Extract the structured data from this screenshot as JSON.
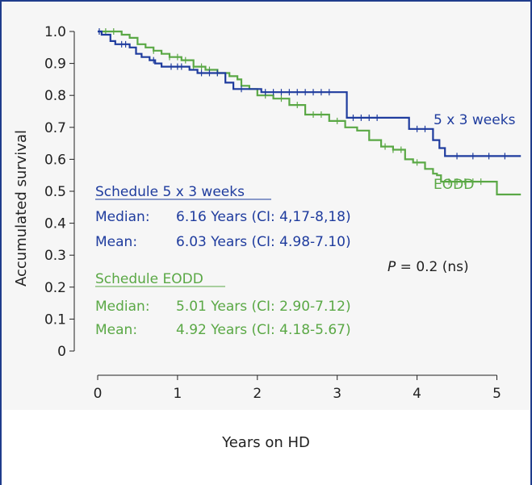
{
  "chart_data": {
    "type": "line",
    "subtype": "kaplan-meier",
    "xlabel": "Years on HD",
    "ylabel": "Accumulated survival",
    "xlim": [
      0,
      5.3
    ],
    "ylim": [
      0,
      1.0
    ],
    "xticks": [
      "0",
      "1",
      "2",
      "3",
      "4",
      "5"
    ],
    "yticks": [
      "0",
      "0.1",
      "0.2",
      "0.3",
      "0.4",
      "0.5",
      "0.6",
      "0.7",
      "0.8",
      "0.9",
      "1.0"
    ],
    "grid": false,
    "series": [
      {
        "name": "5 x 3 weeks",
        "color": "#1f3c9e",
        "x": [
          0,
          0.05,
          0.16,
          0.22,
          0.3,
          0.4,
          0.48,
          0.55,
          0.65,
          0.72,
          0.8,
          0.88,
          1.15,
          1.25,
          1.6,
          1.7,
          1.95,
          2.05,
          3.05,
          3.12,
          3.9,
          4.2,
          4.28,
          4.35,
          5.3
        ],
        "y": [
          1.0,
          0.99,
          0.97,
          0.96,
          0.96,
          0.95,
          0.93,
          0.92,
          0.91,
          0.9,
          0.89,
          0.89,
          0.88,
          0.87,
          0.84,
          0.82,
          0.82,
          0.81,
          0.81,
          0.73,
          0.695,
          0.66,
          0.635,
          0.61,
          0.61
        ],
        "censor_x": [
          0.02,
          0.3,
          0.35,
          0.7,
          0.92,
          1.0,
          1.05,
          1.3,
          1.4,
          1.5,
          1.8,
          2.1,
          2.2,
          2.3,
          2.4,
          2.5,
          2.6,
          2.7,
          2.8,
          2.9,
          3.2,
          3.3,
          3.4,
          3.5,
          4.0,
          4.1,
          4.5,
          4.7,
          4.9,
          5.1
        ]
      },
      {
        "name": "EODD",
        "color": "#5aa845",
        "x": [
          0,
          0.3,
          0.4,
          0.5,
          0.6,
          0.7,
          0.8,
          0.9,
          1.05,
          1.2,
          1.35,
          1.5,
          1.65,
          1.75,
          1.8,
          1.9,
          2.0,
          2.2,
          2.4,
          2.6,
          2.9,
          3.1,
          3.25,
          3.4,
          3.55,
          3.7,
          3.85,
          3.95,
          4.1,
          4.2,
          4.25,
          4.3,
          5.0,
          5.3
        ],
        "y": [
          1.0,
          0.99,
          0.98,
          0.96,
          0.95,
          0.94,
          0.93,
          0.92,
          0.91,
          0.89,
          0.88,
          0.87,
          0.86,
          0.85,
          0.83,
          0.82,
          0.8,
          0.79,
          0.77,
          0.74,
          0.72,
          0.7,
          0.69,
          0.66,
          0.64,
          0.63,
          0.6,
          0.59,
          0.57,
          0.555,
          0.55,
          0.53,
          0.49,
          0.49
        ],
        "censor_x": [
          0.1,
          0.2,
          0.7,
          0.9,
          1.0,
          1.1,
          1.2,
          1.3,
          1.4,
          1.5,
          2.1,
          2.3,
          2.5,
          2.7,
          2.8,
          3.0,
          3.6,
          3.7,
          3.8,
          4.0,
          4.4,
          4.5,
          4.6,
          4.7,
          4.8
        ]
      }
    ],
    "series_labels": [
      "5 x 3 weeks",
      "EODD"
    ],
    "annotations": {
      "blue_heading": "Schedule 5 x 3 weeks",
      "blue_median_label": "Median:",
      "blue_median_value": "6.16 Years (CI: 4,17-8,18)",
      "blue_mean_label": "Mean:",
      "blue_mean_value": "6.03 Years (CI: 4.98-7.10)",
      "green_heading": "Schedule EODD",
      "green_median_label": "Median:",
      "green_median_value": "5.01 Years (CI: 2.90-7.12)",
      "green_mean_label": "Mean:",
      "green_mean_value": "4.92 Years (CI: 4.18-5.67)",
      "p_symbol": "P",
      "p_text": " = 0.2 (ns)"
    }
  },
  "colors": {
    "frame": "#1f3c8c",
    "blue": "#1f3c9e",
    "green": "#5aa845",
    "axis": "#222222"
  }
}
